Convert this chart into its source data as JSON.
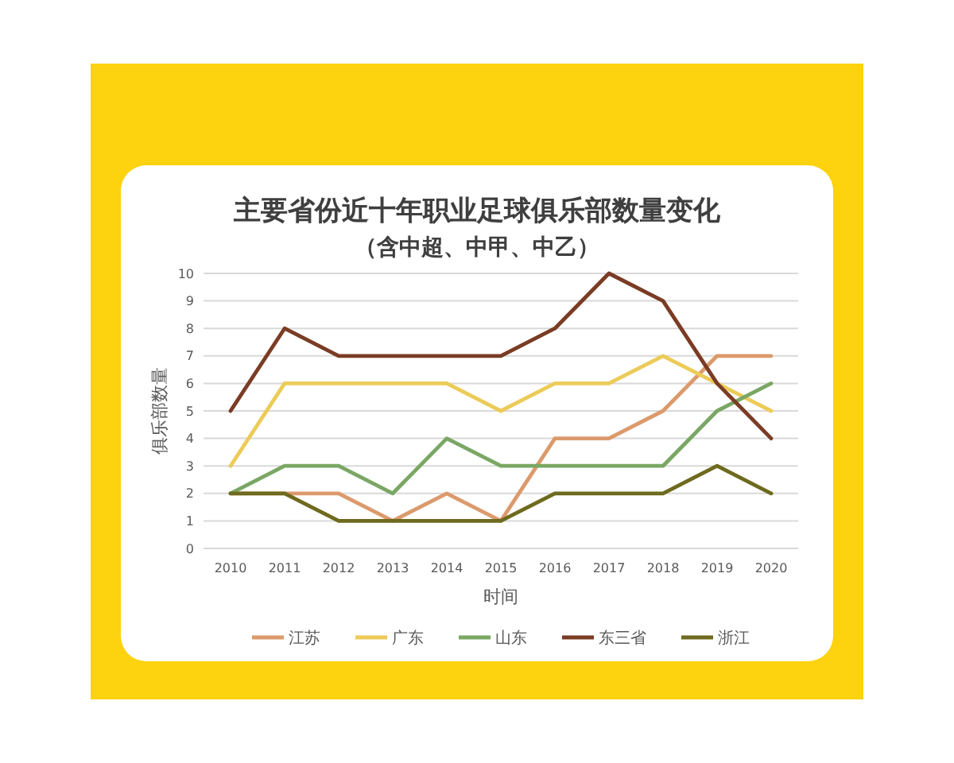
{
  "chart_data": {
    "type": "line",
    "title": "主要省份近十年职业足球俱乐部数量变化",
    "subtitle": "（含中超、中甲、中乙）",
    "xlabel": "时间",
    "ylabel": "俱乐部数量",
    "categories": [
      "2010",
      "2011",
      "2012",
      "2013",
      "2014",
      "2015",
      "2016",
      "2017",
      "2018",
      "2019",
      "2020"
    ],
    "series": [
      {
        "name": "江苏",
        "color": "#dc9a6c",
        "values": [
          2,
          2,
          2,
          1,
          2,
          1,
          4,
          4,
          5,
          7,
          7
        ]
      },
      {
        "name": "广东",
        "color": "#eccb58",
        "values": [
          3,
          6,
          6,
          6,
          6,
          5,
          6,
          6,
          7,
          6,
          5
        ]
      },
      {
        "name": "山东",
        "color": "#7aa764",
        "values": [
          2,
          3,
          3,
          2,
          4,
          3,
          3,
          3,
          3,
          5,
          6
        ]
      },
      {
        "name": "东三省",
        "color": "#7a3c24",
        "values": [
          5,
          8,
          7,
          7,
          7,
          7,
          8,
          10,
          9,
          6,
          4
        ]
      },
      {
        "name": "浙江",
        "color": "#6e6a1e",
        "values": [
          2,
          2,
          1,
          1,
          1,
          1,
          2,
          2,
          2,
          3,
          2
        ]
      }
    ],
    "ylim": [
      0,
      10
    ],
    "yticks": [
      0,
      1,
      2,
      3,
      4,
      5,
      6,
      7,
      8,
      9,
      10
    ],
    "grid": "y",
    "legend": "bottom",
    "line_style": "solid"
  }
}
